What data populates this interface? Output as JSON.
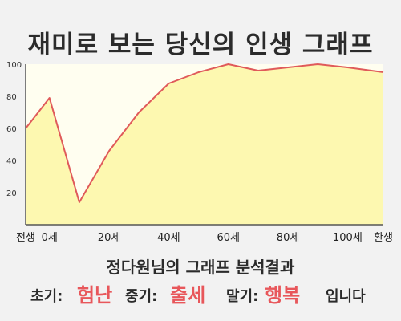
{
  "title": "재미로 보는 당신의 인생 그래프",
  "chart_data": {
    "type": "area",
    "x": [
      -8,
      0,
      10,
      20,
      30,
      40,
      50,
      60,
      70,
      80,
      90,
      100,
      112
    ],
    "y": [
      60,
      79,
      14,
      46,
      70,
      88,
      95,
      100,
      96,
      98,
      100,
      98,
      95
    ],
    "xlim": [
      -8,
      112
    ],
    "ylim": [
      0,
      100
    ],
    "yticks": [
      20,
      40,
      60,
      80,
      100
    ],
    "xtick_labels": [
      {
        "x": -8,
        "label": "전생"
      },
      {
        "x": 0,
        "label": "0세"
      },
      {
        "x": 20,
        "label": "20세"
      },
      {
        "x": 40,
        "label": "40세"
      },
      {
        "x": 60,
        "label": "60세"
      },
      {
        "x": 80,
        "label": "80세"
      },
      {
        "x": 100,
        "label": "100세"
      },
      {
        "x": 112,
        "label": "환생"
      }
    ],
    "grid": false,
    "colors": {
      "fill": "#fdf8b0",
      "line": "#e05a5a",
      "plot_bg": "#fffef0"
    }
  },
  "summary": {
    "heading": "정다원님의 그래프 분석결과",
    "early_label": "초기:",
    "early_value": "험난",
    "middle_label": "중기:",
    "middle_value": "출세",
    "late_label": "말기:",
    "late_value": "행복",
    "ending": "입니다"
  }
}
